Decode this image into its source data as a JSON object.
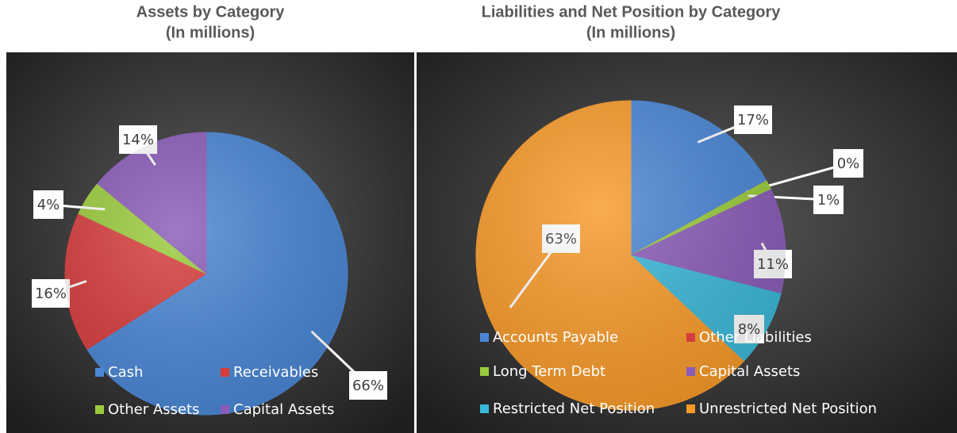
{
  "chart_data": [
    {
      "type": "pie",
      "title": "Assets by Category",
      "subtitle": "(In millions)",
      "categories": [
        "Cash",
        "Receivables",
        "Other Assets",
        "Capital Assets"
      ],
      "values": [
        66,
        16,
        4,
        14
      ],
      "value_labels": [
        "66%",
        "16%",
        "4%",
        "14%"
      ],
      "colors": [
        "#4a86d4",
        "#d63c3c",
        "#9bcb3c",
        "#8a5cb8"
      ]
    },
    {
      "type": "pie",
      "title": "Liabilities and Net Position by Category",
      "subtitle": "(In millions)",
      "categories": [
        "Accounts Payable",
        "Other Liabilities",
        "Long Term Debt",
        "Capital Assets",
        "Restricted Net Position",
        "Unrestricted Net Position"
      ],
      "values": [
        17,
        0,
        1,
        11,
        8,
        63
      ],
      "value_labels": [
        "17%",
        "0%",
        "1%",
        "11%",
        "8%",
        "63%"
      ],
      "colors": [
        "#4a86d4",
        "#d63c3c",
        "#9bcb3c",
        "#8a5cb8",
        "#3bb8d8",
        "#f79a2a"
      ]
    }
  ]
}
